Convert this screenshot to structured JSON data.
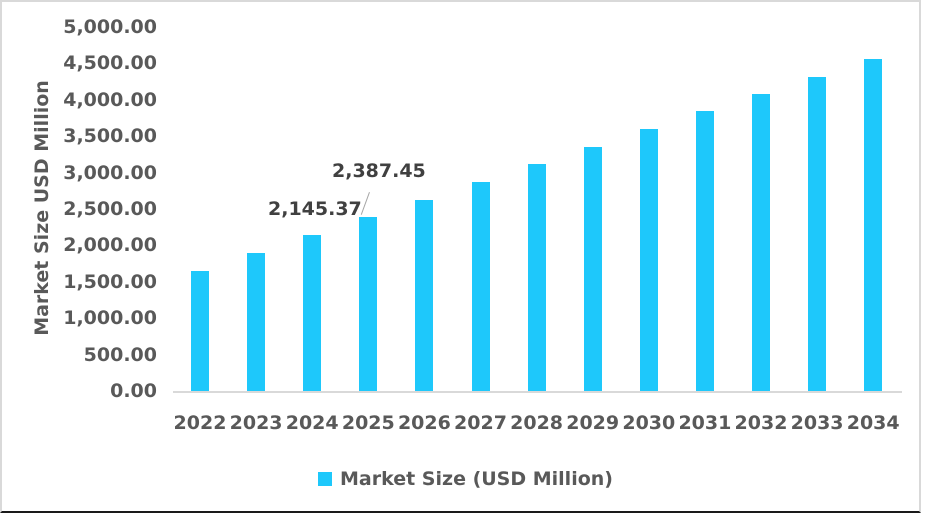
{
  "chart_data": {
    "type": "bar",
    "title": "",
    "xlabel": "",
    "ylabel": "Market Size USD Million",
    "ylim": [
      0,
      5000
    ],
    "yticks": [
      "0.00",
      "500.00",
      "1,000.00",
      "1,500.00",
      "2,000.00",
      "2,500.00",
      "3,000.00",
      "3,500.00",
      "4,000.00",
      "4,500.00",
      "5,000.00"
    ],
    "categories": [
      "2022",
      "2023",
      "2024",
      "2025",
      "2026",
      "2027",
      "2028",
      "2029",
      "2030",
      "2031",
      "2032",
      "2033",
      "2034"
    ],
    "series": [
      {
        "name": "Market Size (USD Million)",
        "color": "#1ec8fb",
        "values": [
          1645,
          1890,
          2145.37,
          2387.45,
          2630,
          2870,
          3115,
          3355,
          3600,
          3840,
          4080,
          4320,
          4565
        ]
      }
    ],
    "annotations": [
      {
        "category": "2024",
        "label": "2,145.37"
      },
      {
        "category": "2025",
        "label": "2,387.45"
      }
    ],
    "grid": false,
    "legend_position": "bottom"
  },
  "legend": {
    "label": "Market Size (USD Million)"
  }
}
